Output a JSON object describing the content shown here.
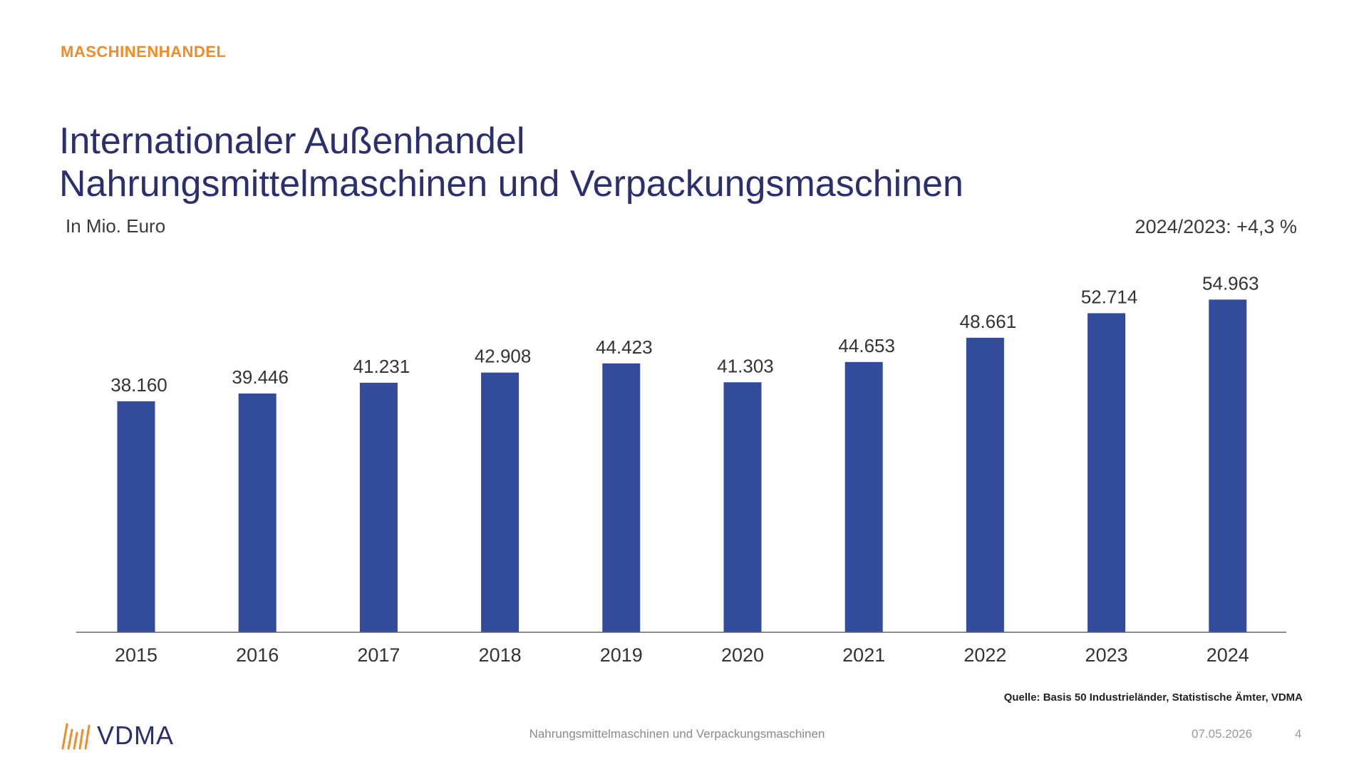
{
  "header": {
    "kicker": "MASCHINENHANDEL",
    "title_line1": "Internationaler Außenhandel",
    "title_line2": "Nahrungsmittelmaschinen und Verpackungsmaschinen",
    "unit": "In Mio. Euro",
    "change": "2024/2023: +4,3 %"
  },
  "chart_data": {
    "type": "bar",
    "categories": [
      "2015",
      "2016",
      "2017",
      "2018",
      "2019",
      "2020",
      "2021",
      "2022",
      "2023",
      "2024"
    ],
    "values": [
      38160,
      39446,
      41231,
      42908,
      44423,
      41303,
      44653,
      48661,
      52714,
      54963
    ],
    "value_labels": [
      "38.160",
      "39.446",
      "41.231",
      "42.908",
      "44.423",
      "41.303",
      "44.653",
      "48.661",
      "52.714",
      "54.963"
    ],
    "ylim": [
      0,
      55000
    ],
    "grid": false,
    "legend": "none",
    "bar_color": "#334b9b"
  },
  "source": "Quelle: Basis 50 Industrieländer, Statistische Ämter, VDMA",
  "footer": {
    "logo_text": "VDMA",
    "center": "Nahrungsmittelmaschinen und Verpackungsmaschinen",
    "date": "07.05.2026",
    "page": "4"
  },
  "colors": {
    "accent": "#f28c28",
    "title": "#2b2f6e",
    "bar": "#334b9b"
  }
}
